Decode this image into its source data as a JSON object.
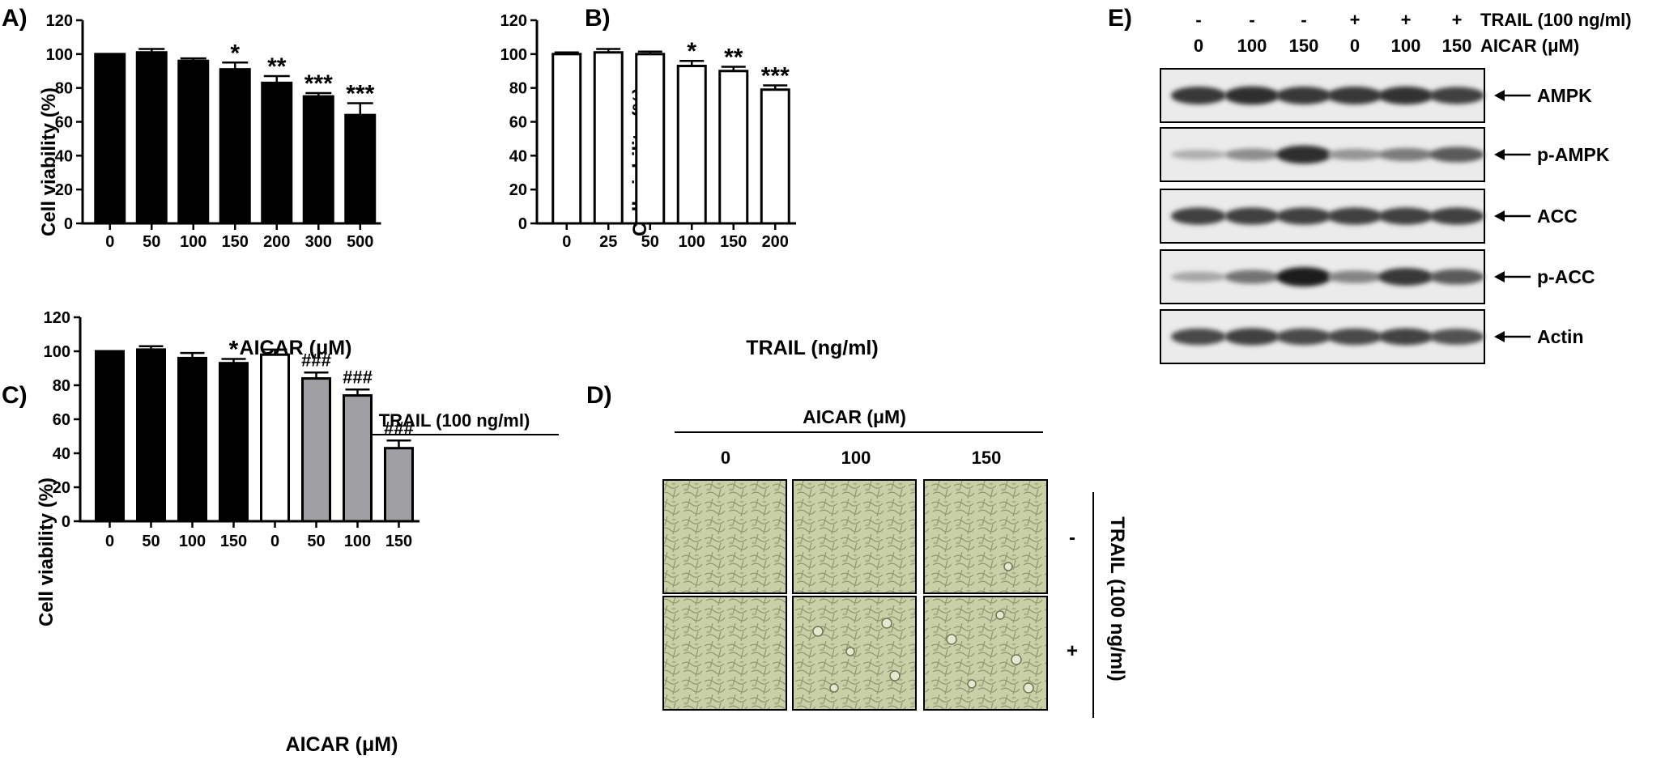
{
  "colors": {
    "black_bar": "#000000",
    "white_bar": "#ffffff",
    "gray_bar": "#a0a0a4",
    "micro_bg": "#c9cfa6"
  },
  "panels": {
    "A": {
      "label": "A)"
    },
    "B": {
      "label": "B)"
    },
    "C": {
      "label": "C)"
    },
    "D": {
      "label": "D)"
    },
    "E": {
      "label": "E)"
    }
  },
  "chart_data": [
    {
      "id": "A",
      "type": "bar",
      "ylabel": "Cell viability (%)",
      "xlabel": "AICAR (μM)",
      "ylim": [
        0,
        120
      ],
      "yticks": [
        0,
        20,
        40,
        60,
        80,
        100,
        120
      ],
      "categories": [
        "0",
        "50",
        "100",
        "150",
        "200",
        "300",
        "500"
      ],
      "values": [
        100,
        101,
        96,
        91,
        83,
        75,
        64
      ],
      "errors": [
        0,
        2,
        1.5,
        4,
        4,
        2,
        7
      ],
      "fills": [
        "black",
        "black",
        "black",
        "black",
        "black",
        "black",
        "black"
      ],
      "annotations": [
        "",
        "",
        "",
        "*",
        "**",
        "***",
        "***"
      ]
    },
    {
      "id": "B",
      "type": "bar",
      "ylabel": "Cell viability (%)",
      "xlabel": "TRAIL (ng/ml)",
      "ylim": [
        0,
        120
      ],
      "yticks": [
        0,
        20,
        40,
        60,
        80,
        100,
        120
      ],
      "categories": [
        "0",
        "25",
        "50",
        "100",
        "150",
        "200"
      ],
      "values": [
        100,
        101,
        100,
        93,
        90,
        79
      ],
      "errors": [
        1,
        2,
        1.5,
        3,
        2.5,
        2.5
      ],
      "fills": [
        "white",
        "white",
        "white",
        "white",
        "white",
        "white"
      ],
      "annotations": [
        "",
        "",
        "",
        "*",
        "**",
        "***"
      ]
    },
    {
      "id": "C",
      "type": "bar",
      "ylabel": "Cell viability (%)",
      "xlabel": "AICAR (μM)",
      "ylim": [
        0,
        120
      ],
      "yticks": [
        0,
        20,
        40,
        60,
        80,
        100,
        120
      ],
      "categories": [
        "0",
        "50",
        "100",
        "150",
        "0",
        "50",
        "100",
        "150"
      ],
      "values": [
        100,
        101,
        96,
        93,
        98,
        84,
        74,
        43
      ],
      "errors": [
        0,
        2,
        3,
        2.5,
        3,
        3.5,
        3.5,
        4.5
      ],
      "fills": [
        "black",
        "black",
        "black",
        "black",
        "white",
        "gray",
        "gray",
        "gray"
      ],
      "annotations": [
        "",
        "",
        "",
        "*",
        "",
        "###",
        "###",
        "###"
      ],
      "group_label": "TRAIL (100 ng/ml)"
    }
  ],
  "panel_d": {
    "top_label": "AICAR (μM)",
    "columns": [
      "0",
      "100",
      "150"
    ],
    "rows": [
      "-",
      "+"
    ],
    "side_label": "TRAIL (100 ng/ml)"
  },
  "panel_e": {
    "trail_signs": [
      "-",
      "-",
      "-",
      "+",
      "+",
      "+"
    ],
    "trail_label": "TRAIL (100 ng/ml)",
    "aicar_doses": [
      "0",
      "100",
      "150",
      "0",
      "100",
      "150"
    ],
    "aicar_label": "AICAR (μM)",
    "blots": [
      {
        "name": "AMPK",
        "intensities": [
          0.85,
          0.9,
          0.85,
          0.85,
          0.88,
          0.8
        ]
      },
      {
        "name": "p-AMPK",
        "intensities": [
          0.15,
          0.35,
          0.9,
          0.3,
          0.45,
          0.65
        ]
      },
      {
        "name": "ACC",
        "intensities": [
          0.8,
          0.8,
          0.8,
          0.8,
          0.8,
          0.8
        ]
      },
      {
        "name": "p-ACC",
        "intensities": [
          0.2,
          0.5,
          1.0,
          0.4,
          0.85,
          0.65
        ]
      },
      {
        "name": "Actin",
        "intensities": [
          0.75,
          0.8,
          0.75,
          0.75,
          0.78,
          0.7
        ]
      }
    ]
  }
}
